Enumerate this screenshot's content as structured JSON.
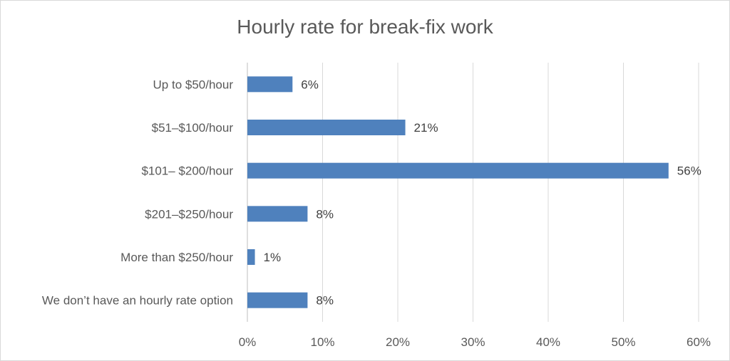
{
  "chart_data": {
    "type": "bar",
    "orientation": "horizontal",
    "title": "Hourly rate for break-fix work",
    "categories": [
      "Up to $50/hour",
      "$51–$100/hour",
      "$101– $200/hour",
      "$201–$250/hour",
      "More than $250/hour",
      "We don’t have an hourly rate option"
    ],
    "values": [
      6,
      21,
      56,
      8,
      1,
      8
    ],
    "data_labels": [
      "6%",
      "21%",
      "56%",
      "8%",
      "1%",
      "8%"
    ],
    "xlim": [
      0,
      60
    ],
    "ticks": [
      0,
      10,
      20,
      30,
      40,
      50,
      60
    ],
    "tick_labels": [
      "0%",
      "10%",
      "20%",
      "30%",
      "40%",
      "50%",
      "60%"
    ],
    "grid": true,
    "legend": "none",
    "bar_color": "#4f81bd",
    "grid_color": "#d9d9d9"
  }
}
